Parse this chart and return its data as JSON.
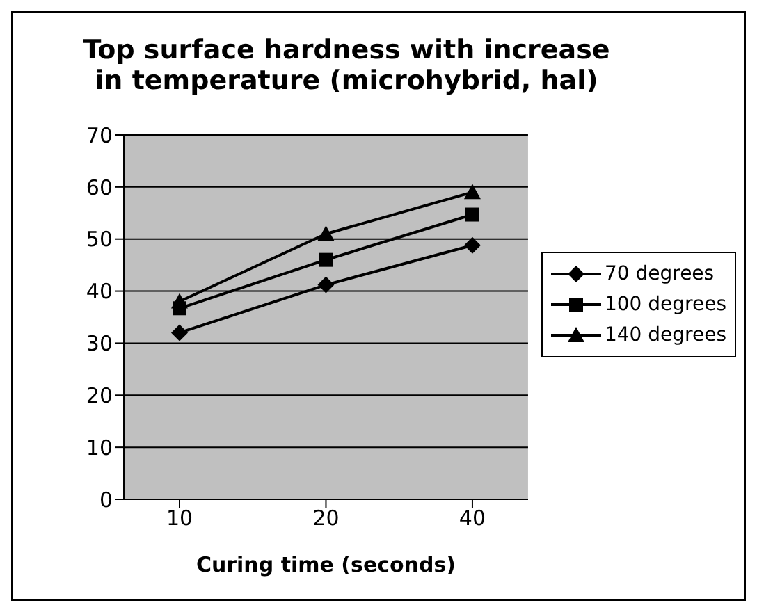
{
  "chart_data": {
    "type": "line",
    "title": "Top surface hardness with increase in temperature (microhybrid, hal)",
    "xlabel": "Curing time (seconds)",
    "categories": [
      "10",
      "20",
      "40"
    ],
    "series": [
      {
        "name": "70 degrees",
        "color": "#000000",
        "marker": "diamond",
        "values": [
          32,
          41.2,
          48.8
        ]
      },
      {
        "name": "100 degrees",
        "color": "#000000",
        "marker": "square",
        "values": [
          36.7,
          46,
          54.7
        ]
      },
      {
        "name": "140 degrees",
        "color": "#000000",
        "marker": "triangle",
        "values": [
          38,
          51,
          59
        ]
      }
    ],
    "ylim": [
      0,
      70
    ],
    "yticks": [
      0,
      10,
      20,
      30,
      40,
      50,
      60,
      70
    ],
    "grid": "y",
    "legend": "right"
  }
}
